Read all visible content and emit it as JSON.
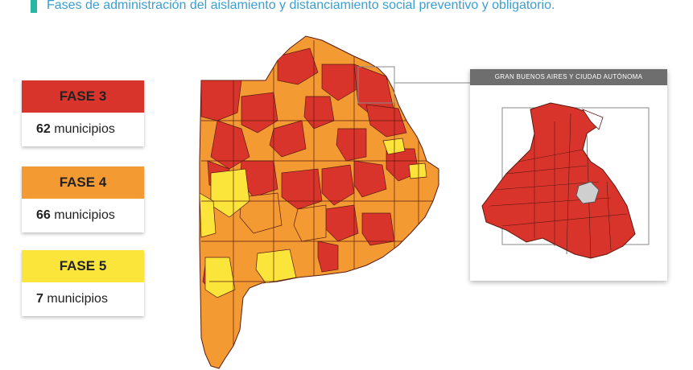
{
  "header": {
    "subtitle": "Fases de administración del aislamiento y distanciamiento social preventivo y obligatorio."
  },
  "colors": {
    "fase3": "#d9342b",
    "fase4": "#f39a33",
    "fase5": "#fbe53b",
    "accent": "#27b7a4",
    "border": "#5a1a12"
  },
  "legend": [
    {
      "phase": "FASE 3",
      "count": "62",
      "unit": "municipios",
      "color": "#d9342b"
    },
    {
      "phase": "FASE 4",
      "count": "66",
      "unit": "municipios",
      "color": "#f39a33"
    },
    {
      "phase": "FASE 5",
      "count": "7",
      "unit": "municipios",
      "color": "#fbe53b"
    }
  ],
  "inset": {
    "title": "GRAN BUENOS AIRES Y CIUDAD AUTÓNOMA"
  }
}
